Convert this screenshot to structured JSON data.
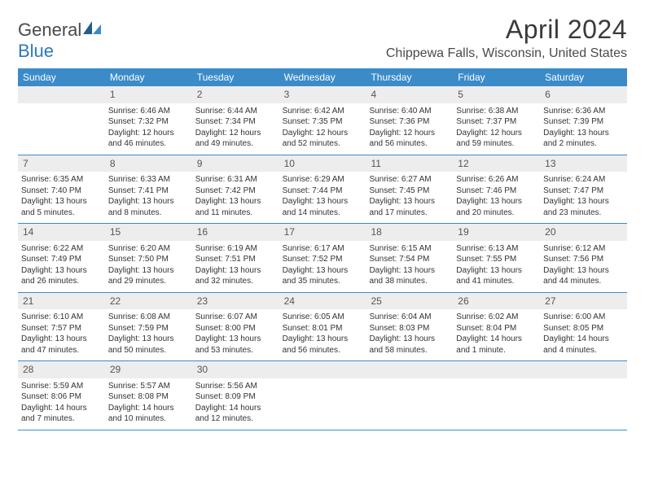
{
  "brand": {
    "part1": "General",
    "part2": "Blue"
  },
  "title": "April 2024",
  "location": "Chippewa Falls, Wisconsin, United States",
  "colors": {
    "header_bg": "#3b8bc9",
    "header_text": "#ffffff",
    "daynum_bg": "#ededed",
    "rule": "#3b8bc9",
    "text": "#333333",
    "brand_gray": "#4a4a4a",
    "brand_blue": "#2a7ab9"
  },
  "day_labels": [
    "Sunday",
    "Monday",
    "Tuesday",
    "Wednesday",
    "Thursday",
    "Friday",
    "Saturday"
  ],
  "weeks": [
    [
      {
        "n": "",
        "sr": "",
        "ss": "",
        "dl": ""
      },
      {
        "n": "1",
        "sr": "Sunrise: 6:46 AM",
        "ss": "Sunset: 7:32 PM",
        "dl": "Daylight: 12 hours and 46 minutes."
      },
      {
        "n": "2",
        "sr": "Sunrise: 6:44 AM",
        "ss": "Sunset: 7:34 PM",
        "dl": "Daylight: 12 hours and 49 minutes."
      },
      {
        "n": "3",
        "sr": "Sunrise: 6:42 AM",
        "ss": "Sunset: 7:35 PM",
        "dl": "Daylight: 12 hours and 52 minutes."
      },
      {
        "n": "4",
        "sr": "Sunrise: 6:40 AM",
        "ss": "Sunset: 7:36 PM",
        "dl": "Daylight: 12 hours and 56 minutes."
      },
      {
        "n": "5",
        "sr": "Sunrise: 6:38 AM",
        "ss": "Sunset: 7:37 PM",
        "dl": "Daylight: 12 hours and 59 minutes."
      },
      {
        "n": "6",
        "sr": "Sunrise: 6:36 AM",
        "ss": "Sunset: 7:39 PM",
        "dl": "Daylight: 13 hours and 2 minutes."
      }
    ],
    [
      {
        "n": "7",
        "sr": "Sunrise: 6:35 AM",
        "ss": "Sunset: 7:40 PM",
        "dl": "Daylight: 13 hours and 5 minutes."
      },
      {
        "n": "8",
        "sr": "Sunrise: 6:33 AM",
        "ss": "Sunset: 7:41 PM",
        "dl": "Daylight: 13 hours and 8 minutes."
      },
      {
        "n": "9",
        "sr": "Sunrise: 6:31 AM",
        "ss": "Sunset: 7:42 PM",
        "dl": "Daylight: 13 hours and 11 minutes."
      },
      {
        "n": "10",
        "sr": "Sunrise: 6:29 AM",
        "ss": "Sunset: 7:44 PM",
        "dl": "Daylight: 13 hours and 14 minutes."
      },
      {
        "n": "11",
        "sr": "Sunrise: 6:27 AM",
        "ss": "Sunset: 7:45 PM",
        "dl": "Daylight: 13 hours and 17 minutes."
      },
      {
        "n": "12",
        "sr": "Sunrise: 6:26 AM",
        "ss": "Sunset: 7:46 PM",
        "dl": "Daylight: 13 hours and 20 minutes."
      },
      {
        "n": "13",
        "sr": "Sunrise: 6:24 AM",
        "ss": "Sunset: 7:47 PM",
        "dl": "Daylight: 13 hours and 23 minutes."
      }
    ],
    [
      {
        "n": "14",
        "sr": "Sunrise: 6:22 AM",
        "ss": "Sunset: 7:49 PM",
        "dl": "Daylight: 13 hours and 26 minutes."
      },
      {
        "n": "15",
        "sr": "Sunrise: 6:20 AM",
        "ss": "Sunset: 7:50 PM",
        "dl": "Daylight: 13 hours and 29 minutes."
      },
      {
        "n": "16",
        "sr": "Sunrise: 6:19 AM",
        "ss": "Sunset: 7:51 PM",
        "dl": "Daylight: 13 hours and 32 minutes."
      },
      {
        "n": "17",
        "sr": "Sunrise: 6:17 AM",
        "ss": "Sunset: 7:52 PM",
        "dl": "Daylight: 13 hours and 35 minutes."
      },
      {
        "n": "18",
        "sr": "Sunrise: 6:15 AM",
        "ss": "Sunset: 7:54 PM",
        "dl": "Daylight: 13 hours and 38 minutes."
      },
      {
        "n": "19",
        "sr": "Sunrise: 6:13 AM",
        "ss": "Sunset: 7:55 PM",
        "dl": "Daylight: 13 hours and 41 minutes."
      },
      {
        "n": "20",
        "sr": "Sunrise: 6:12 AM",
        "ss": "Sunset: 7:56 PM",
        "dl": "Daylight: 13 hours and 44 minutes."
      }
    ],
    [
      {
        "n": "21",
        "sr": "Sunrise: 6:10 AM",
        "ss": "Sunset: 7:57 PM",
        "dl": "Daylight: 13 hours and 47 minutes."
      },
      {
        "n": "22",
        "sr": "Sunrise: 6:08 AM",
        "ss": "Sunset: 7:59 PM",
        "dl": "Daylight: 13 hours and 50 minutes."
      },
      {
        "n": "23",
        "sr": "Sunrise: 6:07 AM",
        "ss": "Sunset: 8:00 PM",
        "dl": "Daylight: 13 hours and 53 minutes."
      },
      {
        "n": "24",
        "sr": "Sunrise: 6:05 AM",
        "ss": "Sunset: 8:01 PM",
        "dl": "Daylight: 13 hours and 56 minutes."
      },
      {
        "n": "25",
        "sr": "Sunrise: 6:04 AM",
        "ss": "Sunset: 8:03 PM",
        "dl": "Daylight: 13 hours and 58 minutes."
      },
      {
        "n": "26",
        "sr": "Sunrise: 6:02 AM",
        "ss": "Sunset: 8:04 PM",
        "dl": "Daylight: 14 hours and 1 minute."
      },
      {
        "n": "27",
        "sr": "Sunrise: 6:00 AM",
        "ss": "Sunset: 8:05 PM",
        "dl": "Daylight: 14 hours and 4 minutes."
      }
    ],
    [
      {
        "n": "28",
        "sr": "Sunrise: 5:59 AM",
        "ss": "Sunset: 8:06 PM",
        "dl": "Daylight: 14 hours and 7 minutes."
      },
      {
        "n": "29",
        "sr": "Sunrise: 5:57 AM",
        "ss": "Sunset: 8:08 PM",
        "dl": "Daylight: 14 hours and 10 minutes."
      },
      {
        "n": "30",
        "sr": "Sunrise: 5:56 AM",
        "ss": "Sunset: 8:09 PM",
        "dl": "Daylight: 14 hours and 12 minutes."
      },
      {
        "n": "",
        "sr": "",
        "ss": "",
        "dl": ""
      },
      {
        "n": "",
        "sr": "",
        "ss": "",
        "dl": ""
      },
      {
        "n": "",
        "sr": "",
        "ss": "",
        "dl": ""
      },
      {
        "n": "",
        "sr": "",
        "ss": "",
        "dl": ""
      }
    ]
  ]
}
